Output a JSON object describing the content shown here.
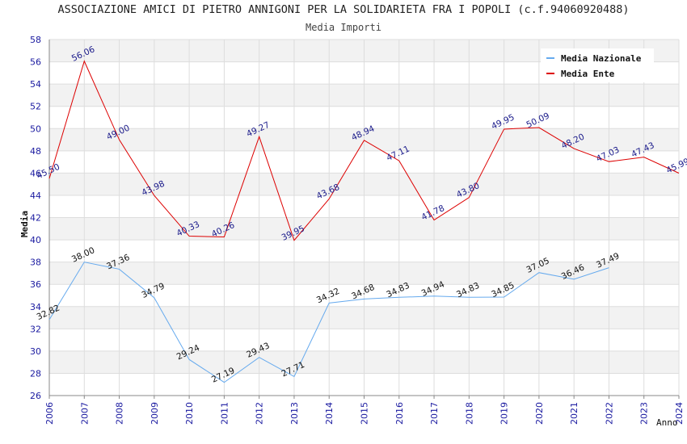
{
  "chart_data": {
    "type": "line",
    "title": "ASSOCIAZIONE AMICI DI PIETRO ANNIGONI PER LA SOLIDARIETA FRA I POPOLI (c.f.94060920488)",
    "subtitle": "Media Importi",
    "xlabel": "Anno",
    "ylabel": "Media",
    "ylim": [
      26,
      58
    ],
    "ytick_step": 2,
    "x": [
      "2006",
      "2007",
      "2008",
      "2009",
      "2010",
      "2011",
      "2012",
      "2013",
      "2014",
      "2015",
      "2016",
      "2017",
      "2018",
      "2019",
      "2020",
      "2021",
      "2022",
      "2023",
      "2024"
    ],
    "series": [
      {
        "name": "Media Nazionale",
        "color": "#66aaee",
        "values": [
          32.82,
          38.0,
          37.36,
          34.79,
          29.24,
          27.19,
          29.43,
          27.71,
          34.32,
          34.68,
          34.83,
          34.94,
          34.83,
          34.85,
          37.05,
          36.46,
          37.49,
          null,
          null
        ],
        "labels": [
          "32.82",
          "38.00",
          "37.36",
          "34.79",
          "29.24",
          "27.19",
          "29.43",
          "27.71",
          "34.32",
          "34.68",
          "34.83",
          "34.94",
          "34.83",
          "34.85",
          "37.05",
          "36.46",
          "37.49",
          null,
          null
        ]
      },
      {
        "name": "Media Ente",
        "color": "#dd0000",
        "values": [
          45.5,
          56.06,
          49.0,
          43.98,
          40.33,
          40.26,
          49.27,
          39.95,
          43.68,
          48.94,
          47.11,
          41.78,
          43.8,
          49.95,
          50.09,
          48.2,
          47.03,
          47.43,
          45.99
        ],
        "labels": [
          "45.50",
          "56.06",
          "49.00",
          "43.98",
          "40.33",
          "40.26",
          "49.27",
          "39.95",
          "43.68",
          "48.94",
          "47.11",
          "41.78",
          "43.80",
          "49.95",
          "50.09",
          "48.20",
          "47.03",
          "47.43",
          "45.99"
        ]
      }
    ],
    "grid": true,
    "legend_position": "top-right"
  }
}
